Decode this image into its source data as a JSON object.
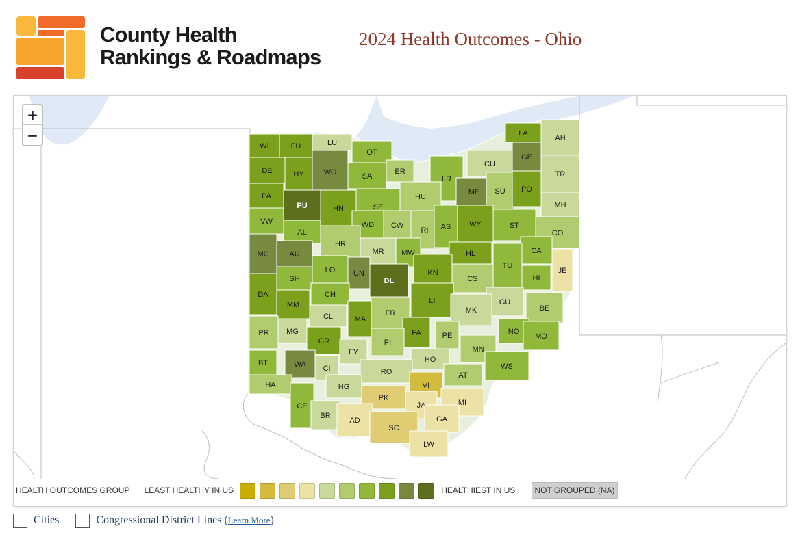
{
  "header": {
    "logo_line1": "County Health",
    "logo_line2": "Rankings & Roadmaps",
    "page_title": "2024 Health Outcomes - Ohio"
  },
  "colors": {
    "logo_top": "#f06a2a",
    "logo_mid": "#f7a32c",
    "logo_bottom": "#d8412c",
    "logo_accent": "#f9b83c",
    "water": "#dfeaf6",
    "title": "#8b3a2b"
  },
  "zoom": {
    "plus": "+",
    "minus": "−"
  },
  "legend": {
    "title": "HEALTH OUTCOMES GROUP",
    "least": "LEAST HEALTHY IN US",
    "healthiest": "HEALTHIEST IN US",
    "not_grouped": "NOT GROUPED (NA)",
    "swatches": [
      "#c9ad05",
      "#d3bb3e",
      "#e0cd73",
      "#ece2a6",
      "#c9d99b",
      "#b0cc6e",
      "#90b83b",
      "#7ba01b",
      "#778a3f",
      "#5d6e1c"
    ]
  },
  "options": {
    "cities": "Cities",
    "districts": "Congressional District Lines (",
    "learn_more": "Learn More",
    "close_paren": ")"
  },
  "counties": [
    {
      "abbr": "WI",
      "group": 8
    },
    {
      "abbr": "FU",
      "group": 8
    },
    {
      "abbr": "LU",
      "group": 5
    },
    {
      "abbr": "OT",
      "group": 7
    },
    {
      "abbr": "AH",
      "group": 5
    },
    {
      "abbr": "LA",
      "group": 8
    },
    {
      "abbr": "GE",
      "group": 9
    },
    {
      "abbr": "CU",
      "group": 5
    },
    {
      "abbr": "DE",
      "group": 8
    },
    {
      "abbr": "HY",
      "group": 8
    },
    {
      "abbr": "WO",
      "group": 9
    },
    {
      "abbr": "SA",
      "group": 7
    },
    {
      "abbr": "ER",
      "group": 6
    },
    {
      "abbr": "LR",
      "group": 7
    },
    {
      "abbr": "ME",
      "group": 9
    },
    {
      "abbr": "SU",
      "group": 6
    },
    {
      "abbr": "PO",
      "group": 8
    },
    {
      "abbr": "TR",
      "group": 5
    },
    {
      "abbr": "PA",
      "group": 8
    },
    {
      "abbr": "PU",
      "group": 10
    },
    {
      "abbr": "HN",
      "group": 8
    },
    {
      "abbr": "SE",
      "group": 7
    },
    {
      "abbr": "HU",
      "group": 6
    },
    {
      "abbr": "MH",
      "group": 5
    },
    {
      "abbr": "VW",
      "group": 7
    },
    {
      "abbr": "AL",
      "group": 7
    },
    {
      "abbr": "WD",
      "group": 7
    },
    {
      "abbr": "CW",
      "group": 6
    },
    {
      "abbr": "RI",
      "group": 6
    },
    {
      "abbr": "AS",
      "group": 7
    },
    {
      "abbr": "WY",
      "group": 8
    },
    {
      "abbr": "ST",
      "group": 7
    },
    {
      "abbr": "CO",
      "group": 6
    },
    {
      "abbr": "MC",
      "group": 9
    },
    {
      "abbr": "AU",
      "group": 9
    },
    {
      "abbr": "HR",
      "group": 6
    },
    {
      "abbr": "MR",
      "group": 5
    },
    {
      "abbr": "MW",
      "group": 7
    },
    {
      "abbr": "HL",
      "group": 8
    },
    {
      "abbr": "CA",
      "group": 7
    },
    {
      "abbr": "SH",
      "group": 7
    },
    {
      "abbr": "LO",
      "group": 7
    },
    {
      "abbr": "UN",
      "group": 9
    },
    {
      "abbr": "DL",
      "group": 10
    },
    {
      "abbr": "KN",
      "group": 8
    },
    {
      "abbr": "TU",
      "group": 7
    },
    {
      "abbr": "JE",
      "group": 4
    },
    {
      "abbr": "CS",
      "group": 6
    },
    {
      "abbr": "HI",
      "group": 7
    },
    {
      "abbr": "DA",
      "group": 8
    },
    {
      "abbr": "MM",
      "group": 8
    },
    {
      "abbr": "CH",
      "group": 7
    },
    {
      "abbr": "LI",
      "group": 8
    },
    {
      "abbr": "GU",
      "group": 5
    },
    {
      "abbr": "CL",
      "group": 5
    },
    {
      "abbr": "MA",
      "group": 8
    },
    {
      "abbr": "FR",
      "group": 6
    },
    {
      "abbr": "MK",
      "group": 5
    },
    {
      "abbr": "BE",
      "group": 6
    },
    {
      "abbr": "PR",
      "group": 6
    },
    {
      "abbr": "MG",
      "group": 5
    },
    {
      "abbr": "GR",
      "group": 8
    },
    {
      "abbr": "FA",
      "group": 8
    },
    {
      "abbr": "PE",
      "group": 6
    },
    {
      "abbr": "NO",
      "group": 7
    },
    {
      "abbr": "MO",
      "group": 7
    },
    {
      "abbr": "PI",
      "group": 6
    },
    {
      "abbr": "FY",
      "group": 5
    },
    {
      "abbr": "MN",
      "group": 6
    },
    {
      "abbr": "BT",
      "group": 7
    },
    {
      "abbr": "WA",
      "group": 9
    },
    {
      "abbr": "CI",
      "group": 5
    },
    {
      "abbr": "HO",
      "group": 5
    },
    {
      "abbr": "WS",
      "group": 7
    },
    {
      "abbr": "RO",
      "group": 5
    },
    {
      "abbr": "AT",
      "group": 6
    },
    {
      "abbr": "HA",
      "group": 6
    },
    {
      "abbr": "HG",
      "group": 5
    },
    {
      "abbr": "VI",
      "group": 2
    },
    {
      "abbr": "CE",
      "group": 7
    },
    {
      "abbr": "PK",
      "group": 3
    },
    {
      "abbr": "JA",
      "group": 4
    },
    {
      "abbr": "MI",
      "group": 4
    },
    {
      "abbr": "BR",
      "group": 5
    },
    {
      "abbr": "AD",
      "group": 4
    },
    {
      "abbr": "SC",
      "group": 3
    },
    {
      "abbr": "GA",
      "group": 4
    },
    {
      "abbr": "LW",
      "group": 4
    }
  ]
}
